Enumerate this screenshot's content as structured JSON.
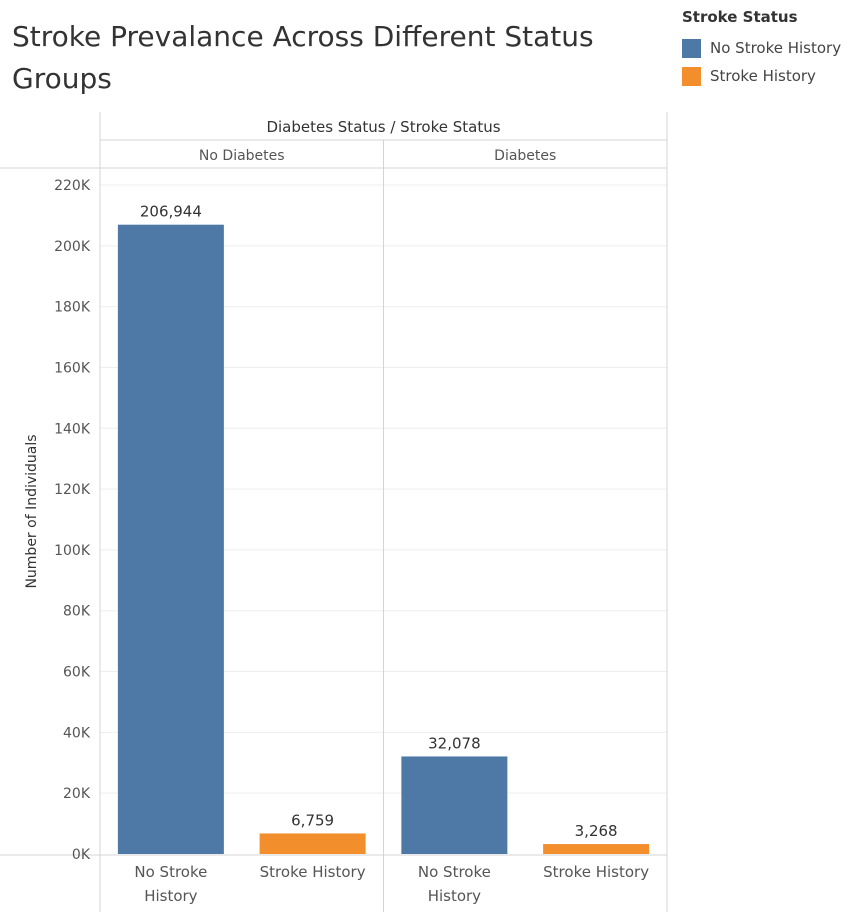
{
  "chart_data": {
    "type": "bar",
    "title": "Stroke Prevalance Across Different Status Groups",
    "header": "Diabetes Status / Stroke Status",
    "ylabel": "Number of Individuals",
    "ylim": [
      0,
      220000
    ],
    "yticks": [
      "0K",
      "20K",
      "40K",
      "60K",
      "80K",
      "100K",
      "120K",
      "140K",
      "160K",
      "180K",
      "200K",
      "220K"
    ],
    "yticks_values": [
      0,
      20000,
      40000,
      60000,
      80000,
      100000,
      120000,
      140000,
      160000,
      180000,
      200000,
      220000
    ],
    "legend": {
      "title": "Stroke Status",
      "placement": "top-right",
      "items": [
        {
          "label": "No Stroke History",
          "color": "#4e79a7"
        },
        {
          "label": "Stroke History",
          "color": "#f28e2b"
        }
      ]
    },
    "groups": [
      {
        "name": "No Diabetes",
        "bars": [
          {
            "category": "No Stroke History",
            "value": 206944,
            "label": "206,944",
            "color": "#4e79a7"
          },
          {
            "category": "Stroke History",
            "value": 6759,
            "label": "6,759",
            "color": "#f28e2b"
          }
        ]
      },
      {
        "name": "Diabetes",
        "bars": [
          {
            "category": "No Stroke History",
            "value": 32078,
            "label": "32,078",
            "color": "#4e79a7"
          },
          {
            "category": "Stroke History",
            "value": 3268,
            "label": "3,268",
            "color": "#f28e2b"
          }
        ]
      }
    ],
    "grid": true
  }
}
